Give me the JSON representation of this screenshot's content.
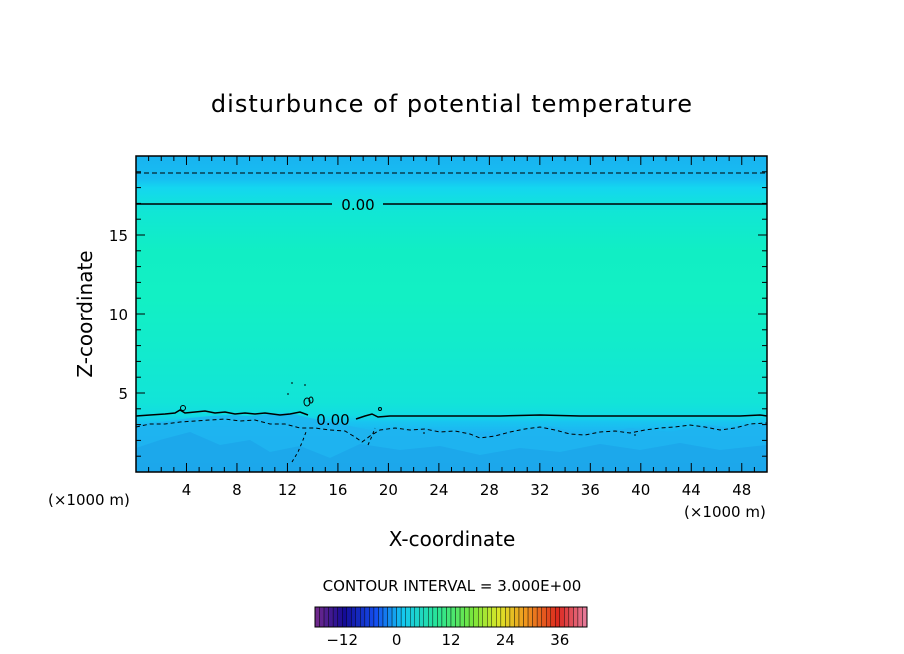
{
  "chart_data": {
    "type": "heatmap",
    "title": "disturbunce of potential temperature",
    "xlabel": "X-coordinate",
    "ylabel": "Z-coordinate",
    "x_unit": "(×1000 m)",
    "x_unit_right": "(×1000 m)",
    "xlim": [
      0,
      50
    ],
    "ylim": [
      0,
      20
    ],
    "x_ticks": [
      "4",
      "8",
      "12",
      "16",
      "20",
      "24",
      "28",
      "32",
      "36",
      "40",
      "44",
      "48"
    ],
    "y_ticks": [
      "5",
      "10",
      "15"
    ],
    "contour_interval_text": "CONTOUR INTERVAL = 3.000E+00",
    "contour_labels": [
      {
        "text": "0.00",
        "x": 17.5,
        "z": 16.9
      },
      {
        "text": "0.00",
        "x": 15.5,
        "z": 3.4
      }
    ],
    "zero_contour_upper_z": 16.9,
    "zero_contour_lower_z": 3.7,
    "upper_dashed_contour_z": 18.9,
    "colorbar": {
      "min": -18,
      "max": 42,
      "tick_labels": [
        "-12",
        "0",
        "12",
        "24",
        "36"
      ],
      "tick_values": [
        -12,
        0,
        12,
        24,
        36
      ]
    },
    "colors": {
      "top_band": "#19b3f0",
      "upper_band": "#14c8f5",
      "mid_field": "#11ecc0",
      "lower_transition": "#12d3e8",
      "bottom_field": "#1faaf0"
    }
  }
}
